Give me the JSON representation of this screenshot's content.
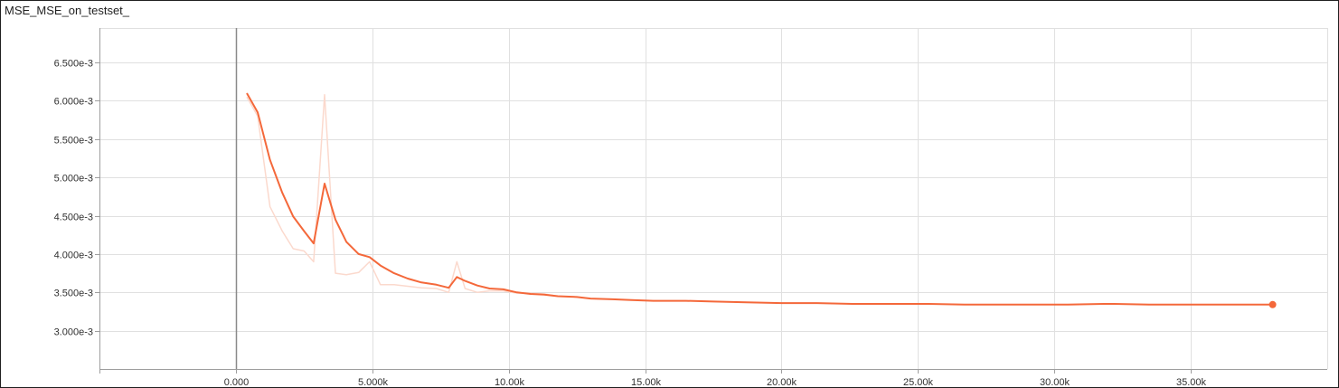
{
  "title": "MSE_MSE_on_testset_",
  "colors": {
    "smoothed": "#f4683a",
    "raw": "#fbd9cd",
    "grid": "#e0e0e0",
    "zero_line": "#8a8a8a",
    "axis": "#9e9e9e"
  },
  "chart_data": {
    "type": "line",
    "title": "MSE_MSE_on_testset_",
    "xlabel": "",
    "ylabel": "",
    "xlim": [
      -5000,
      40000
    ],
    "ylim": [
      0.0025,
      0.00695
    ],
    "x_ticks": [
      0,
      5000,
      10000,
      15000,
      20000,
      25000,
      30000,
      35000
    ],
    "x_tick_labels": [
      "0.000",
      "5.000k",
      "10.00k",
      "15.00k",
      "20.00k",
      "25.00k",
      "30.00k",
      "35.00k"
    ],
    "y_ticks": [
      0.003,
      0.0035,
      0.004,
      0.0045,
      0.005,
      0.0055,
      0.006,
      0.0065
    ],
    "y_tick_labels": [
      "3.000e-3",
      "3.500e-3",
      "4.000e-3",
      "4.500e-3",
      "5.000e-3",
      "5.500e-3",
      "6.000e-3",
      "6.500e-3"
    ],
    "grid": true,
    "series": [
      {
        "role": "raw",
        "x": [
          400,
          800,
          1250,
          1700,
          2100,
          2500,
          2850,
          3250,
          3650,
          4050,
          4500,
          4900,
          5300,
          5800,
          6300,
          6800,
          7350,
          7800,
          8100,
          8400,
          8850,
          9300,
          9800,
          10300,
          10800,
          11300,
          11800
        ],
        "y": [
          0.00605,
          0.0058,
          0.00462,
          0.0043,
          0.00407,
          0.00404,
          0.0039,
          0.00608,
          0.00375,
          0.00373,
          0.00376,
          0.0039,
          0.0036,
          0.0036,
          0.00358,
          0.00356,
          0.00355,
          0.0035,
          0.0039,
          0.00355,
          0.0035,
          0.00352,
          0.00352,
          0.00349,
          0.00349,
          0.00348,
          0.00345
        ]
      },
      {
        "role": "smoothed",
        "x": [
          400,
          800,
          1250,
          1700,
          2100,
          2500,
          2850,
          3250,
          3650,
          4050,
          4500,
          4900,
          5300,
          5800,
          6300,
          6800,
          7350,
          7800,
          8100,
          8400,
          8850,
          9300,
          9800,
          10300,
          10800,
          11300,
          11800,
          12500,
          13000,
          13800,
          14500,
          15300,
          16500,
          17500,
          18700,
          20000,
          21300,
          22600,
          24000,
          25400,
          26700,
          28000,
          29300,
          30500,
          31800,
          32200,
          33500,
          34800,
          36000,
          37000,
          38000
        ],
        "y": [
          0.0061,
          0.00585,
          0.00523,
          0.0048,
          0.00449,
          0.0043,
          0.00414,
          0.00492,
          0.00445,
          0.00416,
          0.004,
          0.00396,
          0.00385,
          0.00375,
          0.00368,
          0.00363,
          0.0036,
          0.00356,
          0.0037,
          0.00365,
          0.00359,
          0.00355,
          0.00354,
          0.0035,
          0.00348,
          0.00347,
          0.00345,
          0.00344,
          0.00342,
          0.00341,
          0.0034,
          0.00339,
          0.00339,
          0.00338,
          0.00337,
          0.00336,
          0.00336,
          0.00335,
          0.00335,
          0.00335,
          0.00334,
          0.00334,
          0.00334,
          0.00334,
          0.00335,
          0.00335,
          0.00334,
          0.00334,
          0.00334,
          0.00334,
          0.00334
        ]
      }
    ]
  }
}
